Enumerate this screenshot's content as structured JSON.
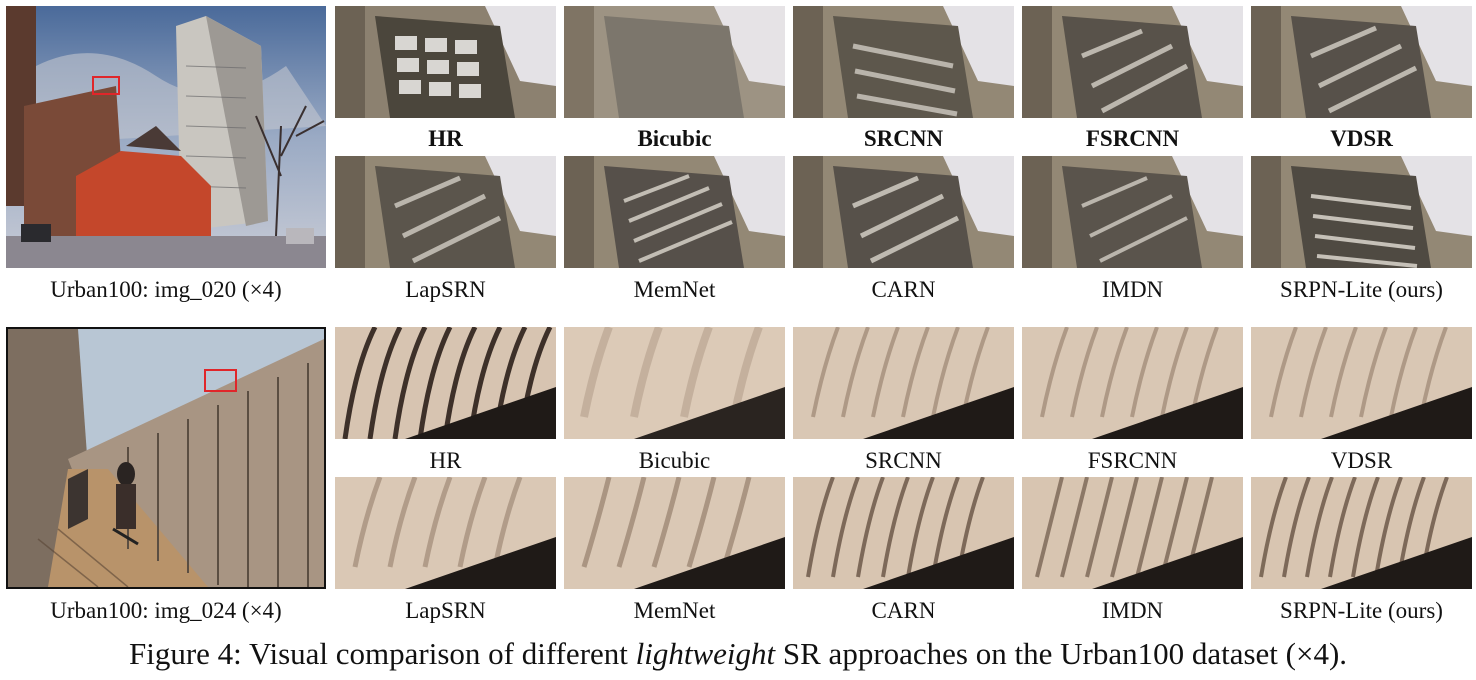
{
  "rows": [
    {
      "source_label": "Urban100: img_020 (×4)",
      "methods_top": [
        "HR",
        "Bicubic",
        "SRCNN",
        "FSRCNN",
        "VDSR"
      ],
      "methods_bottom": [
        "LapSRN",
        "MemNet",
        "CARN",
        "IMDN",
        "SRPN-Lite (ours)"
      ]
    },
    {
      "source_label": "Urban100: img_024 (×4)",
      "methods_top": [
        "HR",
        "Bicubic",
        "SRCNN",
        "FSRCNN",
        "VDSR"
      ],
      "methods_bottom": [
        "LapSRN",
        "MemNet",
        "CARN",
        "IMDN",
        "SRPN-Lite (ours)"
      ]
    }
  ],
  "caption": {
    "prefix": "Figure 4: Visual comparison of different ",
    "emphasis": "lightweight",
    "suffix": " SR approaches on the Urban100 dataset (×4)."
  },
  "colors": {
    "highlight_box": "#e0262a"
  }
}
